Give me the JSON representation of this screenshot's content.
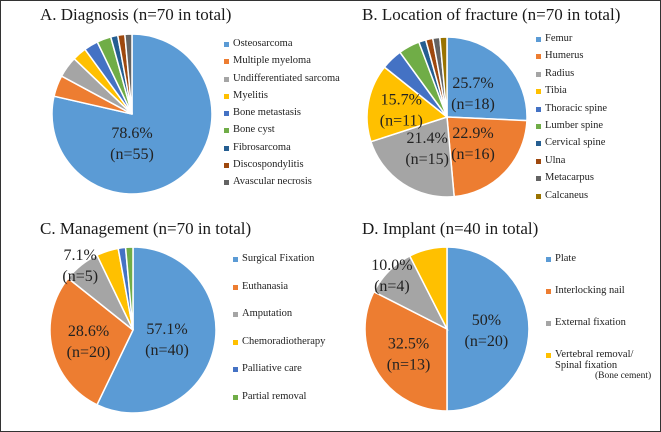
{
  "chart_data": [
    {
      "type": "pie",
      "title": "A. Diagnosis (n=70 in total)",
      "categories": [
        "Osteosarcoma",
        "Multiple myeloma",
        "Undifferentiated sarcoma",
        "Myelitis",
        "Bone metastasis",
        "Bone cyst",
        "Fibrosarcoma",
        "Discospondylitis",
        "Avascular necrosis"
      ],
      "values": [
        55,
        3,
        3,
        2,
        2,
        2,
        1,
        1,
        1
      ],
      "colors": [
        "#5b9bd5",
        "#ed7d31",
        "#a5a5a5",
        "#ffc000",
        "#4472c4",
        "#70ad47",
        "#255e91",
        "#9e480e",
        "#636363"
      ],
      "data_labels": [
        {
          "index": 0,
          "line1": "78.6%",
          "line2": "(n=55)"
        }
      ],
      "legend_position": "right",
      "start": "12 o'clock",
      "direction": "clockwise"
    },
    {
      "type": "pie",
      "title": "B. Location of fracture (n=70 in total)",
      "categories": [
        "Femur",
        "Humerus",
        "Radius",
        "Tibia",
        "Thoracic spine",
        "Lumber spine",
        "Cervical spine",
        "Ulna",
        "Metacarpus",
        "Calcaneus"
      ],
      "values": [
        18,
        16,
        15,
        11,
        3,
        3,
        1,
        1,
        1,
        1
      ],
      "colors": [
        "#5b9bd5",
        "#ed7d31",
        "#a5a5a5",
        "#ffc000",
        "#4472c4",
        "#70ad47",
        "#255e91",
        "#9e480e",
        "#636363",
        "#997300"
      ],
      "data_labels": [
        {
          "index": 0,
          "line1": "25.7%",
          "line2": "(n=18)"
        },
        {
          "index": 1,
          "line1": "22.9%",
          "line2": "(n=16)"
        },
        {
          "index": 2,
          "line1": "21.4%",
          "line2": "(n=15)"
        },
        {
          "index": 3,
          "line1": "15.7%",
          "line2": "(n=11)"
        }
      ],
      "legend_position": "right",
      "start": "12 o'clock",
      "direction": "clockwise"
    },
    {
      "type": "pie",
      "title": "C. Management (n=70 in total)",
      "categories": [
        "Surgical Fixation",
        "Euthanasia",
        "Amputation",
        "Chemoradiotherapy",
        "Palliative care",
        "Partial removal"
      ],
      "values": [
        40,
        20,
        5,
        3,
        1,
        1
      ],
      "colors": [
        "#5b9bd5",
        "#ed7d31",
        "#a5a5a5",
        "#ffc000",
        "#4472c4",
        "#70ad47"
      ],
      "data_labels": [
        {
          "index": 0,
          "line1": "57.1%",
          "line2": "(n=40)"
        },
        {
          "index": 1,
          "line1": "28.6%",
          "line2": "(n=20)"
        },
        {
          "index": 2,
          "line1": "7.1%",
          "line2": "(n=5)"
        }
      ],
      "legend_position": "right",
      "start": "12 o'clock",
      "direction": "clockwise"
    },
    {
      "type": "pie",
      "title": "D. Implant (n=40 in total)",
      "categories": [
        "Plate",
        "Interlocking nail",
        "External fixation",
        "Vertebral removal/ Spinal fixation (Bone cement)"
      ],
      "legend_lines": [
        [
          "Plate"
        ],
        [
          "Interlocking nail"
        ],
        [
          "External fixation"
        ],
        [
          "Vertebral removal/",
          "Spinal fixation",
          "(Bone cement)"
        ]
      ],
      "values": [
        20,
        13,
        4,
        3
      ],
      "colors": [
        "#5b9bd5",
        "#ed7d31",
        "#a5a5a5",
        "#ffc000"
      ],
      "data_labels": [
        {
          "index": 0,
          "line1": "50%",
          "line2": "(n=20)"
        },
        {
          "index": 1,
          "line1": "32.5%",
          "line2": "(n=13)"
        },
        {
          "index": 2,
          "line1": "10.0%",
          "line2": "(n=4)"
        }
      ],
      "legend_position": "right",
      "start": "12 o'clock",
      "direction": "clockwise"
    }
  ]
}
